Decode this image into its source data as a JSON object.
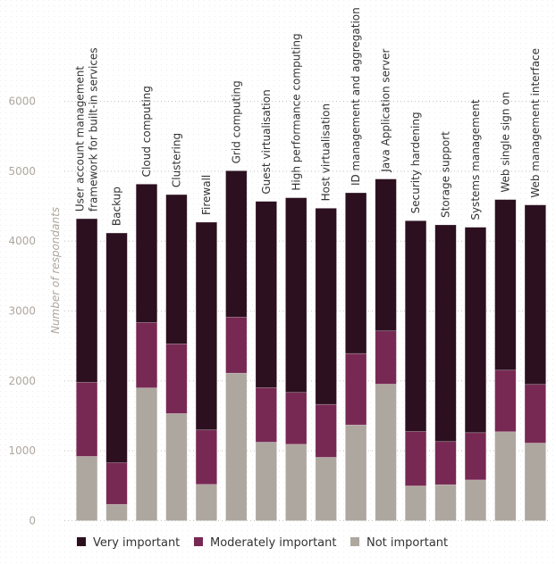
{
  "chart_data": {
    "type": "bar",
    "stacked": true,
    "title": "",
    "xlabel": "",
    "ylabel": "Number of respondants",
    "ylim": [
      0,
      6000
    ],
    "yticks": [
      0,
      1000,
      2000,
      3000,
      4000,
      5000,
      6000
    ],
    "grid": true,
    "legend_position": "bottom",
    "categories": [
      [
        "User account management",
        "framework for built-in services"
      ],
      [
        "Backup"
      ],
      [
        "Cloud computing"
      ],
      [
        "Clustering"
      ],
      [
        "Firewall"
      ],
      [
        "Grid computing"
      ],
      [
        "Guest virtualisation"
      ],
      [
        "High performance computing"
      ],
      [
        "Host virtualisation"
      ],
      [
        "ID management and aggregation"
      ],
      [
        "Java Application server"
      ],
      [
        "Security hardening"
      ],
      [
        "Storage support"
      ],
      [
        "Systems management"
      ],
      [
        "Web single sign on"
      ],
      [
        "Web management interface"
      ]
    ],
    "series": [
      {
        "name": "Not important",
        "color": "#aea79f",
        "values": [
          920,
          234,
          1900,
          1533,
          520,
          2111,
          1124,
          1094,
          907,
          1370,
          1954,
          498,
          515,
          583,
          1273,
          1111
        ]
      },
      {
        "name": "Moderately important",
        "color": "#772953",
        "values": [
          1060,
          596,
          935,
          997,
          779,
          801,
          779,
          741,
          757,
          1022,
          762,
          779,
          618,
          677,
          881,
          839
        ]
      },
      {
        "name": "Very important",
        "color": "#2c101f",
        "values": [
          2340,
          3286,
          1980,
          2135,
          2971,
          2094,
          2665,
          2785,
          2806,
          2299,
          2172,
          3014,
          3099,
          2938,
          2440,
          2567
        ]
      }
    ],
    "legend": [
      {
        "name": "Very important",
        "color": "#2c101f"
      },
      {
        "name": "Moderately important",
        "color": "#772953"
      },
      {
        "name": "Not important",
        "color": "#aea79f"
      }
    ]
  }
}
